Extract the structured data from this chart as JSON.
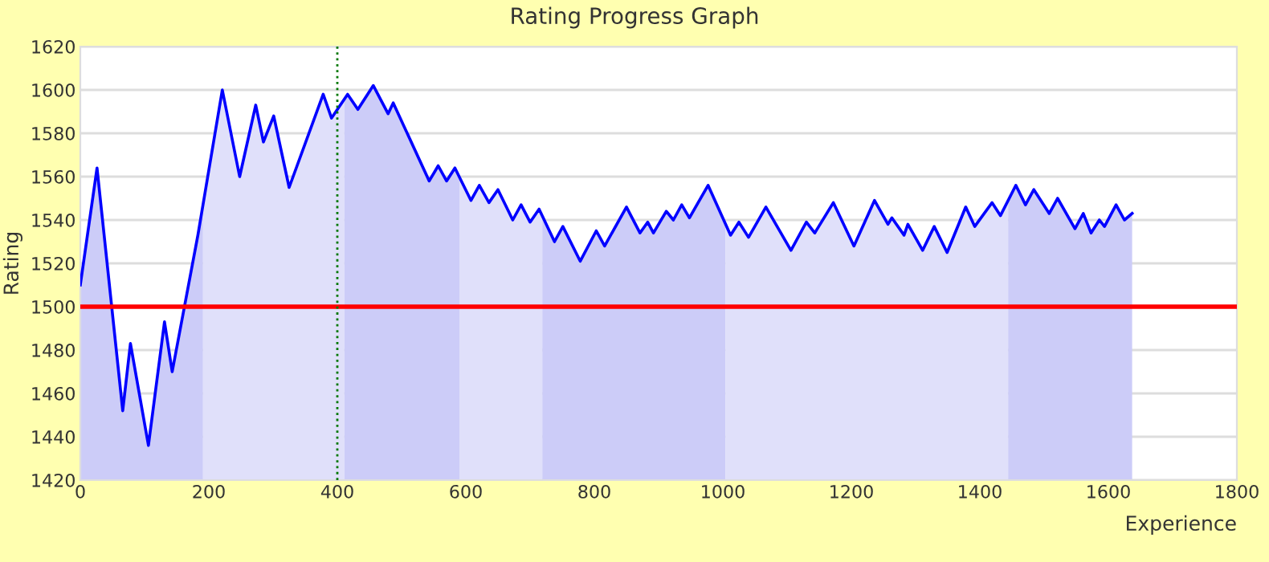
{
  "chart_data": {
    "type": "line",
    "title": "Rating Progress Graph",
    "xlabel": "Experience",
    "ylabel": "Rating",
    "xlim": [
      0,
      1800
    ],
    "xticks": [
      0,
      200,
      400,
      600,
      800,
      1000,
      1200,
      1400,
      1600,
      1800
    ],
    "ylim": [
      1420,
      1620
    ],
    "yticks": [
      1420,
      1440,
      1460,
      1480,
      1500,
      1520,
      1540,
      1560,
      1580,
      1600,
      1620
    ],
    "grid": "y",
    "ref_lines": [
      {
        "axis": "y",
        "value": 1500,
        "color": "#ff0000",
        "line_style": "solid"
      },
      {
        "axis": "x",
        "value": 400,
        "color": "#007700",
        "line_style": "dotted"
      }
    ],
    "series": [
      {
        "type": "area",
        "color": "#ccccf8",
        "x": [
          0,
          26,
          66,
          78,
          106,
          131,
          143,
          183,
          191
        ],
        "values": [
          1510,
          1564,
          1452,
          1483,
          1436,
          1493,
          1470,
          1533,
          1546
        ]
      },
      {
        "type": "area",
        "color": "#e0e0fa",
        "x": [
          191,
          221,
          248,
          273,
          285,
          301,
          325,
          378,
          391,
          411
        ],
        "values": [
          1546,
          1600,
          1560,
          1593,
          1576,
          1588,
          1555,
          1598,
          1587,
          1596
        ]
      },
      {
        "type": "area",
        "color": "#ccccf8",
        "x": [
          411,
          416,
          432,
          456,
          479,
          487,
          543,
          557,
          570,
          583,
          590
        ],
        "values": [
          1596,
          1598,
          1591,
          1602,
          1589,
          1594,
          1558,
          1565,
          1558,
          1564,
          1560
        ]
      },
      {
        "type": "area",
        "color": "#e0e0fa",
        "x": [
          590,
          608,
          621,
          636,
          650,
          673,
          686,
          700,
          714,
          719
        ],
        "values": [
          1560,
          1549,
          1556,
          1548,
          1554,
          1540,
          1547,
          1539,
          1545,
          1542
        ]
      },
      {
        "type": "area",
        "color": "#ccccf8",
        "x": [
          719,
          738,
          751,
          778,
          803,
          816,
          850,
          871,
          883,
          892,
          912,
          923,
          936,
          948,
          977,
          1004
        ],
        "values": [
          1542,
          1530,
          1537,
          1521,
          1535,
          1528,
          1546,
          1534,
          1539,
          1534,
          1544,
          1540,
          1547,
          1541,
          1556,
          1538
        ]
      },
      {
        "type": "area",
        "color": "#e0e0fa",
        "x": [
          1004,
          1012,
          1025,
          1040,
          1067,
          1106,
          1130,
          1143,
          1172,
          1204,
          1236,
          1257,
          1263,
          1282,
          1288,
          1311,
          1329,
          1349,
          1378,
          1392,
          1419,
          1432,
          1444
        ],
        "values": [
          1538,
          1533,
          1539,
          1532,
          1546,
          1526,
          1539,
          1534,
          1548,
          1528,
          1549,
          1538,
          1541,
          1533,
          1538,
          1526,
          1537,
          1525,
          1546,
          1537,
          1548,
          1542,
          1549
        ]
      },
      {
        "type": "area",
        "color": "#ccccf8",
        "x": [
          1444,
          1456,
          1471,
          1484,
          1508,
          1521,
          1548,
          1561,
          1573,
          1586,
          1594,
          1612,
          1625,
          1637
        ],
        "values": [
          1549,
          1556,
          1547,
          1554,
          1543,
          1550,
          1536,
          1543,
          1534,
          1540,
          1537,
          1547,
          1540,
          1543
        ]
      },
      {
        "color": "#0000ff",
        "x": [
          0,
          26,
          66,
          78,
          106,
          131,
          143,
          183,
          221,
          248,
          273,
          285,
          301,
          325,
          378,
          391,
          416,
          432,
          456,
          479,
          487,
          543,
          557,
          570,
          583,
          608,
          621,
          636,
          650,
          673,
          686,
          700,
          714,
          738,
          751,
          778,
          803,
          816,
          850,
          871,
          883,
          892,
          912,
          923,
          936,
          948,
          977,
          1012,
          1025,
          1040,
          1067,
          1106,
          1130,
          1143,
          1172,
          1204,
          1236,
          1257,
          1263,
          1282,
          1288,
          1311,
          1329,
          1349,
          1378,
          1392,
          1419,
          1432,
          1456,
          1471,
          1484,
          1508,
          1521,
          1548,
          1561,
          1573,
          1586,
          1594,
          1612,
          1625,
          1637
        ],
        "values": [
          1510,
          1564,
          1452,
          1483,
          1436,
          1493,
          1470,
          1533,
          1600,
          1560,
          1593,
          1576,
          1588,
          1555,
          1598,
          1587,
          1598,
          1591,
          1602,
          1589,
          1594,
          1558,
          1565,
          1558,
          1564,
          1549,
          1556,
          1548,
          1554,
          1540,
          1547,
          1539,
          1545,
          1530,
          1537,
          1521,
          1535,
          1528,
          1546,
          1534,
          1539,
          1534,
          1544,
          1540,
          1547,
          1541,
          1556,
          1533,
          1539,
          1532,
          1546,
          1526,
          1539,
          1534,
          1548,
          1528,
          1549,
          1538,
          1541,
          1533,
          1538,
          1526,
          1537,
          1525,
          1546,
          1537,
          1548,
          1542,
          1556,
          1547,
          1554,
          1543,
          1550,
          1536,
          1543,
          1534,
          1540,
          1537,
          1547,
          1540,
          1543
        ]
      }
    ]
  }
}
